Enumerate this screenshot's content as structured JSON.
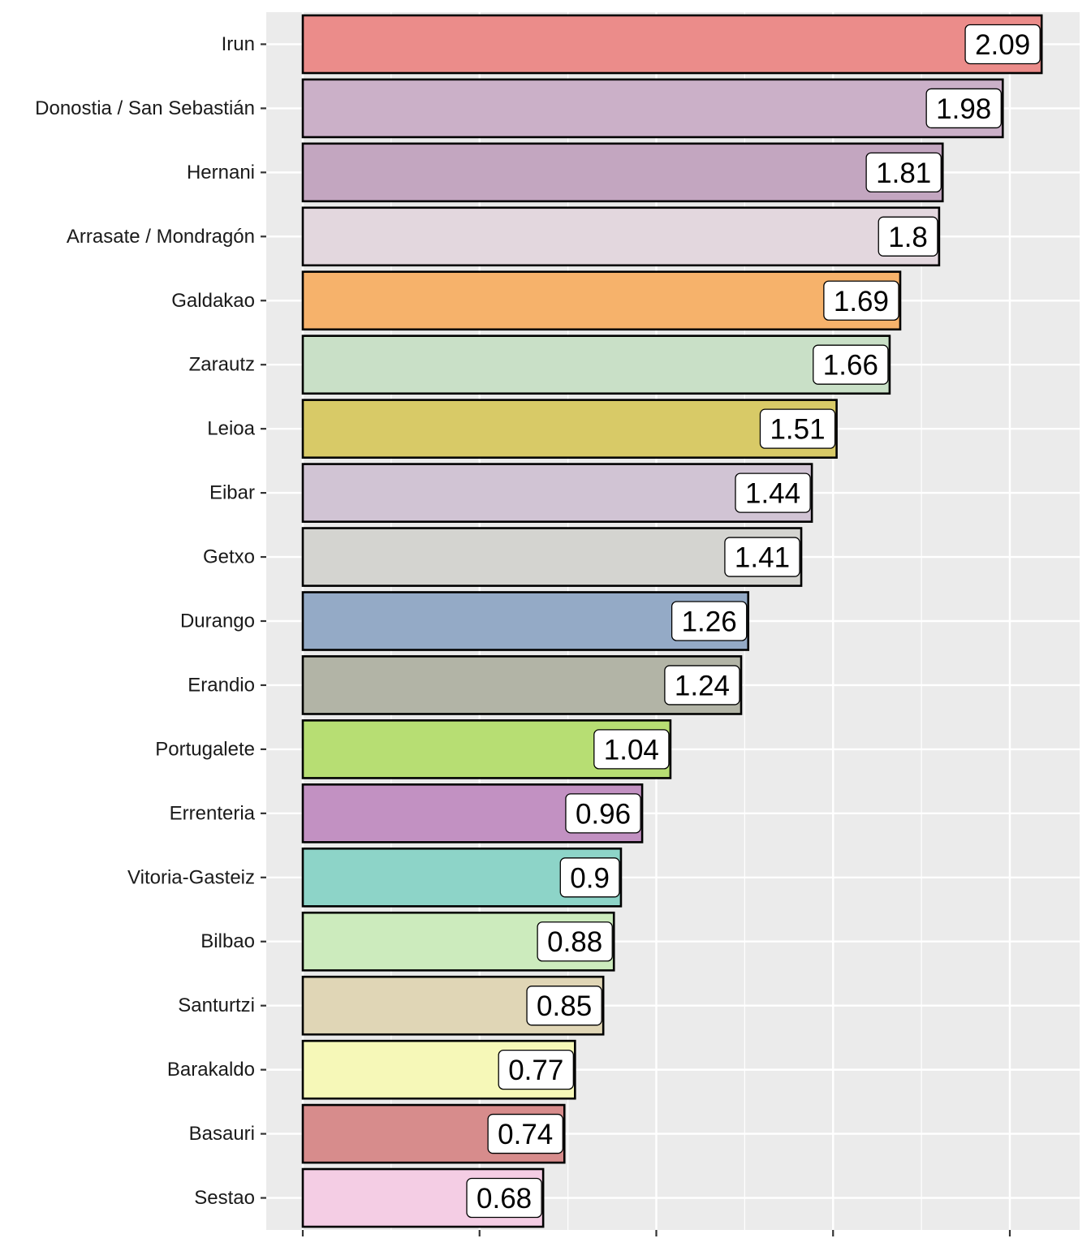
{
  "chart_data": {
    "type": "bar",
    "orientation": "horizontal",
    "title": "",
    "xlabel": "",
    "ylabel": "",
    "xlim": [
      0,
      2.2
    ],
    "x_major_ticks": [
      0,
      0.5,
      1.0,
      1.5,
      2.0
    ],
    "x_minor_ticks": [
      0.25,
      0.75,
      1.25,
      1.75,
      2.25
    ],
    "grid": true,
    "categories": [
      "Irun",
      "Donostia / San Sebastián",
      "Hernani",
      "Arrasate / Mondragón",
      "Galdakao",
      "Zarautz",
      "Leioa",
      "Eibar",
      "Getxo",
      "Durango",
      "Erandio",
      "Portugalete",
      "Errenteria",
      "Vitoria-Gasteiz",
      "Bilbao",
      "Santurtzi",
      "Barakaldo",
      "Basauri",
      "Sestao"
    ],
    "values": [
      2.09,
      1.98,
      1.81,
      1.8,
      1.69,
      1.66,
      1.51,
      1.44,
      1.41,
      1.26,
      1.24,
      1.04,
      0.96,
      0.9,
      0.88,
      0.85,
      0.77,
      0.74,
      0.68
    ],
    "labels": [
      "2.09",
      "1.98",
      "1.81",
      "1.8",
      "1.69",
      "1.66",
      "1.51",
      "1.44",
      "1.41",
      "1.26",
      "1.24",
      "1.04",
      "0.96",
      "0.9",
      "0.88",
      "0.85",
      "0.77",
      "0.74",
      "0.68"
    ],
    "colors": [
      "#EB8C8A",
      "#CBB0C8",
      "#C3A6C0",
      "#E3D7DE",
      "#F6B26B",
      "#C9E0C7",
      "#D8CA67",
      "#D1C4D4",
      "#D4D4D0",
      "#94AAC6",
      "#B2B4A6",
      "#B7DE73",
      "#C291C2",
      "#8DD4C8",
      "#CCEBBD",
      "#E0D6B6",
      "#F6F8B8",
      "#D78C8C",
      "#F4CDE4"
    ]
  },
  "colors": {
    "panel_background": "#EBEBEB",
    "grid": "#FFFFFF",
    "bar_outline": "#000000",
    "label_box": "#FFFFFF"
  }
}
